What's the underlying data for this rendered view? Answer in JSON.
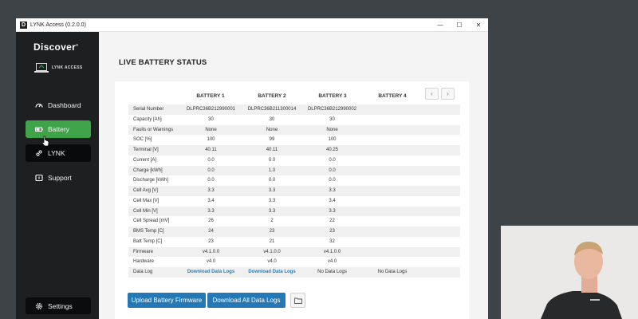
{
  "window": {
    "title": "LYNK Access (0.2.0.0)",
    "app_icon": "D",
    "minimize_glyph": "—",
    "maximize_glyph": "☐",
    "close_glyph": "✕"
  },
  "sidebar": {
    "brand": "Discover",
    "brand_mark": "®",
    "sub_brand": "LYNK ACCESS",
    "items": [
      {
        "label": "Dashboard",
        "icon": "gauge-icon",
        "active": false
      },
      {
        "label": "Battery",
        "icon": "battery-icon",
        "active": true
      },
      {
        "label": "LYNK",
        "icon": "link-icon",
        "active": false
      },
      {
        "label": "Support",
        "icon": "support-icon",
        "active": false
      }
    ],
    "settings_label": "Settings",
    "collapse_glyph": "‹"
  },
  "main": {
    "title": "LIVE BATTERY STATUS",
    "columns": [
      "BATTERY 1",
      "BATTERY 2",
      "BATTERY 3",
      "BATTERY 4"
    ],
    "pager_prev": "‹",
    "pager_next": "›",
    "rows": [
      {
        "label": "Serial Number",
        "values": [
          "DLPRC36B212990001",
          "DLPRC36B211300014",
          "DLPRC36B212990002",
          ""
        ]
      },
      {
        "label": "Capacity [Ah]",
        "values": [
          "30",
          "30",
          "30",
          ""
        ]
      },
      {
        "label": "Faults or Warnings",
        "values": [
          "None",
          "None",
          "None",
          ""
        ]
      },
      {
        "label": "SOC [%]",
        "values": [
          "100",
          "99",
          "100",
          ""
        ]
      },
      {
        "label": "Terminal [V]",
        "values": [
          "40.11",
          "40.11",
          "40.25",
          ""
        ]
      },
      {
        "label": "Current [A]",
        "values": [
          "0.0",
          "0.0",
          "0.0",
          ""
        ]
      },
      {
        "label": "Charge [kWh]",
        "values": [
          "0.0",
          "1.0",
          "0.0",
          ""
        ]
      },
      {
        "label": "Discharge [kWh]",
        "values": [
          "0.0",
          "0.0",
          "0.0",
          ""
        ]
      },
      {
        "label": "Cell Avg [V]",
        "values": [
          "3.3",
          "3.3",
          "3.3",
          ""
        ]
      },
      {
        "label": "Cell Max [V]",
        "values": [
          "3.4",
          "3.3",
          "3.4",
          ""
        ]
      },
      {
        "label": "Cell Min [V]",
        "values": [
          "3.3",
          "3.3",
          "3.3",
          ""
        ]
      },
      {
        "label": "Cell Spread [mV]",
        "values": [
          "26",
          "2",
          "22",
          ""
        ]
      },
      {
        "label": "BMS Temp [C]",
        "values": [
          "24",
          "23",
          "23",
          ""
        ]
      },
      {
        "label": "Batt Temp [C]",
        "values": [
          "23",
          "21",
          "32",
          ""
        ]
      },
      {
        "label": "Firmware",
        "values": [
          "v4.1.0.0",
          "v4.1.0.0",
          "v4.1.0.0",
          ""
        ]
      },
      {
        "label": "Hardware",
        "values": [
          "v4.0",
          "v4.0",
          "v4.0",
          ""
        ]
      }
    ],
    "data_log": {
      "label": "Data Log",
      "values": [
        "Download Data Logs",
        "Download Data Logs",
        "No Data Logs",
        "No Data Logs"
      ]
    },
    "upload_button": "Upload Battery Firmware",
    "download_all_button": "Download All Data Logs"
  },
  "colors": {
    "accent_green": "#3fa349",
    "button_blue": "#2478b5",
    "link_blue": "#2a7fb0",
    "sidebar_bg": "#1d1f21"
  }
}
